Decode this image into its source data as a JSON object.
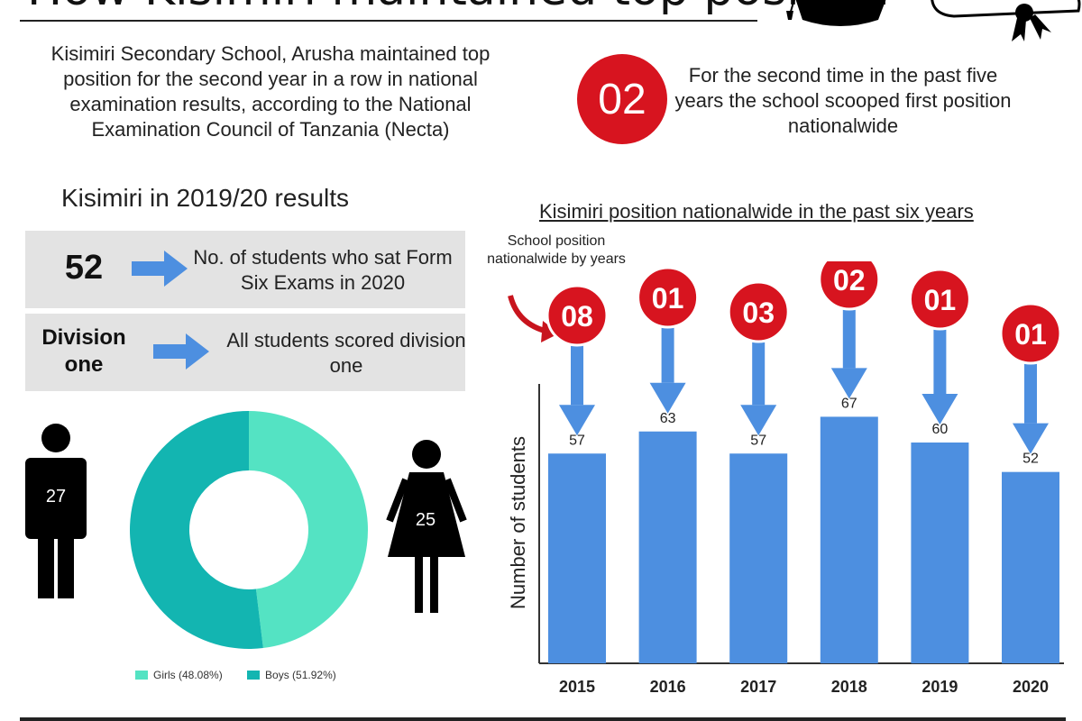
{
  "header": {
    "title": "How Kisimiri maintained top position"
  },
  "intro": {
    "text": "Kisimiri Secondary School, Arusha maintained top position for the second year in a row in national examination results, according to the National Examination Council of Tanzania (Necta)"
  },
  "badge": {
    "number": "02",
    "text": "For the second time in the past five years the school scooped first position nationalwide"
  },
  "summary": {
    "heading": "Kisimiri in 2019/20 results",
    "stats": [
      {
        "value": "52",
        "description": "No. of students who sat Form Six Exams in 2020"
      },
      {
        "value": "Division one",
        "description": "All students scored division one"
      }
    ]
  },
  "gender": {
    "boys_count": "27",
    "girls_count": "25",
    "donut": [
      {
        "label": "Girls (48.08%)",
        "percent": 48.08,
        "color": "#54e3c3"
      },
      {
        "label": "Boys (51.92%)",
        "percent": 51.92,
        "color": "#13b5b1"
      }
    ]
  },
  "colors": {
    "accent_red": "#d7141f",
    "bar_blue": "#4d8fe0",
    "arrow_blue": "#4d8fe0"
  },
  "chart_data": {
    "type": "bar",
    "title": "Kisimiri position nationalwide in the past six years",
    "annotation": "School position nationalwide by years",
    "ylabel": "Number of students",
    "xlabel": "",
    "categories": [
      "2015",
      "2016",
      "2017",
      "2018",
      "2019",
      "2020"
    ],
    "values": [
      57,
      63,
      57,
      67,
      60,
      52
    ],
    "positions": [
      "08",
      "01",
      "03",
      "02",
      "01",
      "01"
    ],
    "ylim": [
      0,
      72
    ],
    "grid": false
  }
}
